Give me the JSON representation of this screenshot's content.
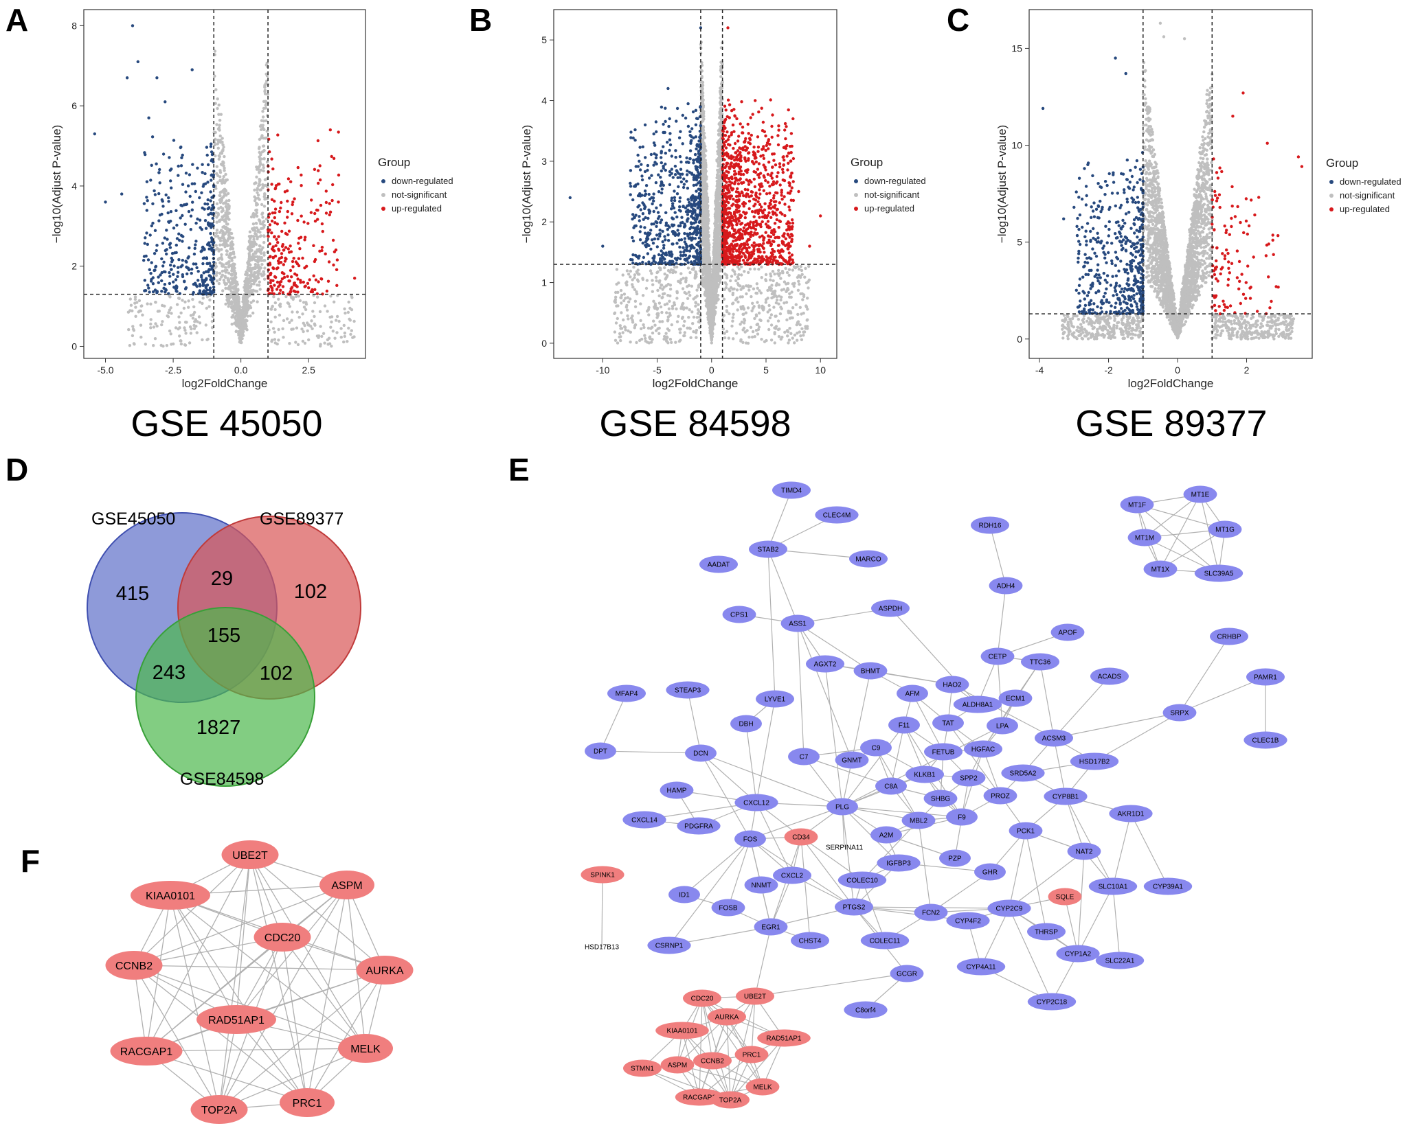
{
  "panels": {
    "A": "A",
    "B": "B",
    "C": "C",
    "D": "D",
    "E": "E",
    "F": "F"
  },
  "colors": {
    "down": "#27497e",
    "ns": "#bfbfbf",
    "up": "#d7191c",
    "venn_blue": "#5e6fc9",
    "venn_red": "#d95555",
    "venn_green": "#4db84d",
    "node_blue": "#8888ee",
    "node_red": "#f07e7e",
    "edge": "#b0b0b0"
  },
  "chart_data": [
    {
      "type": "scatter",
      "id": "A",
      "dataset_title": "GSE 45050",
      "xlabel": "log2FoldChange",
      "ylabel": "−log10(Adjust P-value)",
      "xlim": [
        -5.8,
        4.6
      ],
      "ylim": [
        -0.3,
        8.4
      ],
      "xticks": [
        -5.0,
        -2.5,
        0.0,
        2.5
      ],
      "xtick_labels": [
        "-5.0",
        "-2.5",
        "0.0",
        "2.5"
      ],
      "yticks": [
        0,
        2,
        4,
        6,
        8
      ],
      "fc_cutoff": 1,
      "p_cutoff": 1.3,
      "counts": {
        "ns": 1400,
        "down": 380,
        "up": 240
      },
      "legend_title": "Group",
      "legend": [
        "down-regulated",
        "not-significant",
        "up-regulated"
      ],
      "outliers": [
        [
          -4.0,
          8.0
        ],
        [
          -3.8,
          7.1
        ],
        [
          -4.2,
          6.7
        ],
        [
          -3.1,
          6.7
        ],
        [
          -2.8,
          6.1
        ],
        [
          -1.8,
          6.9
        ],
        [
          -5.4,
          5.3
        ],
        [
          -3.4,
          5.7
        ],
        [
          -4.4,
          3.8
        ],
        [
          -5.0,
          3.6
        ],
        [
          3.3,
          5.4
        ],
        [
          3.6,
          3.6
        ],
        [
          4.2,
          1.7
        ],
        [
          2.8,
          3.4
        ]
      ],
      "up_outliers_note": "scattered red points extend to about 4.2"
    },
    {
      "type": "scatter",
      "id": "B",
      "dataset_title": "GSE 84598",
      "xlabel": "log2FoldChange",
      "ylabel": "−log10(Adjust P-value)",
      "xlim": [
        -14.5,
        11.5
      ],
      "ylim": [
        -0.25,
        5.5
      ],
      "xticks": [
        -10,
        -5,
        0,
        5,
        10
      ],
      "xtick_labels": [
        "-10",
        "-5",
        "0",
        "5",
        "10"
      ],
      "yticks": [
        0,
        1,
        2,
        3,
        4,
        5
      ],
      "fc_cutoff": 1,
      "p_cutoff": 1.3,
      "counts": {
        "ns": 3500,
        "down": 650,
        "up": 1100
      },
      "legend_title": "Group",
      "legend": [
        "down-regulated",
        "not-significant",
        "up-regulated"
      ],
      "outliers": [
        [
          -13.0,
          2.4
        ],
        [
          -10.0,
          1.6
        ],
        [
          -5.5,
          2.4
        ],
        [
          -6.5,
          2.2
        ],
        [
          -1.0,
          5.2
        ],
        [
          1.5,
          5.2
        ],
        [
          10.0,
          2.1
        ],
        [
          8.0,
          2.5
        ],
        [
          6.0,
          2.2
        ],
        [
          9.0,
          1.6
        ],
        [
          4.5,
          2.8
        ],
        [
          7.0,
          1.8
        ],
        [
          -4.0,
          4.2
        ],
        [
          4.0,
          4.0
        ]
      ]
    },
    {
      "type": "scatter",
      "id": "C",
      "dataset_title": "GSE 89377",
      "xlabel": "log2FoldChange",
      "ylabel": "−log10(Adjust P-value)",
      "xlim": [
        -4.3,
        3.9
      ],
      "ylim": [
        -1.0,
        17.0
      ],
      "xticks": [
        -4,
        -2,
        0,
        2
      ],
      "xtick_labels": [
        "-4",
        "-2",
        "0",
        "2"
      ],
      "yticks": [
        0,
        5,
        10,
        15
      ],
      "fc_cutoff": 1,
      "p_cutoff": 1.3,
      "counts": {
        "ns": 3200,
        "down": 520,
        "up": 110
      },
      "legend_title": "Group",
      "legend": [
        "down-regulated",
        "not-significant",
        "up-regulated"
      ],
      "outliers": [
        [
          -0.5,
          16.3
        ],
        [
          -0.4,
          15.6
        ],
        [
          -3.9,
          11.9
        ],
        [
          -1.8,
          14.5
        ],
        [
          -1.5,
          13.7
        ],
        [
          3.5,
          9.4
        ],
        [
          3.6,
          8.9
        ],
        [
          2.6,
          10.1
        ],
        [
          0.2,
          15.5
        ],
        [
          -3.0,
          6.8
        ],
        [
          -3.3,
          6.2
        ],
        [
          1.9,
          12.7
        ],
        [
          1.6,
          11.5
        ],
        [
          -2.6,
          9.0
        ]
      ]
    }
  ],
  "venn": {
    "labels": {
      "set1": "GSE45050",
      "set2": "GSE89377",
      "set3": "GSE84598"
    },
    "counts": {
      "only1": "415",
      "only2": "102",
      "only3": "1827",
      "s12": "29",
      "s13": "243",
      "s23": "102",
      "s123": "155"
    }
  },
  "network_E": {
    "nodes": [
      {
        "id": "TIMD4",
        "c": "b"
      },
      {
        "id": "CLEC4M",
        "c": "b"
      },
      {
        "id": "STAB2",
        "c": "b"
      },
      {
        "id": "MARCO",
        "c": "b"
      },
      {
        "id": "AADAT",
        "c": "b"
      },
      {
        "id": "RDH16",
        "c": "b"
      },
      {
        "id": "ADH4",
        "c": "b"
      },
      {
        "id": "MT1F",
        "c": "b"
      },
      {
        "id": "MT1E",
        "c": "b"
      },
      {
        "id": "MT1G",
        "c": "b"
      },
      {
        "id": "MT1M",
        "c": "b"
      },
      {
        "id": "MT1X",
        "c": "b"
      },
      {
        "id": "SLC39A5",
        "c": "b"
      },
      {
        "id": "CPS1",
        "c": "b"
      },
      {
        "id": "ASS1",
        "c": "b"
      },
      {
        "id": "ASPDH",
        "c": "b"
      },
      {
        "id": "APOF",
        "c": "b"
      },
      {
        "id": "CETP",
        "c": "b"
      },
      {
        "id": "TTC36",
        "c": "b"
      },
      {
        "id": "CRHBP",
        "c": "b"
      },
      {
        "id": "AGXT2",
        "c": "b"
      },
      {
        "id": "BHMT",
        "c": "b"
      },
      {
        "id": "HAO2",
        "c": "b"
      },
      {
        "id": "ACADS",
        "c": "b"
      },
      {
        "id": "PAMR1",
        "c": "b"
      },
      {
        "id": "MFAP4",
        "c": "b"
      },
      {
        "id": "STEAP3",
        "c": "b"
      },
      {
        "id": "LYVE1",
        "c": "b"
      },
      {
        "id": "AFM",
        "c": "b"
      },
      {
        "id": "ALDH8A1",
        "c": "b"
      },
      {
        "id": "ECM1",
        "c": "b"
      },
      {
        "id": "SRPX",
        "c": "b"
      },
      {
        "id": "DBH",
        "c": "b"
      },
      {
        "id": "F11",
        "c": "b"
      },
      {
        "id": "TAT",
        "c": "b"
      },
      {
        "id": "LPA",
        "c": "b"
      },
      {
        "id": "ACSM3",
        "c": "b"
      },
      {
        "id": "CLEC1B",
        "c": "b"
      },
      {
        "id": "DPT",
        "c": "b"
      },
      {
        "id": "DCN",
        "c": "b"
      },
      {
        "id": "C7",
        "c": "b"
      },
      {
        "id": "GNMT",
        "c": "b"
      },
      {
        "id": "C9",
        "c": "b"
      },
      {
        "id": "FETUB",
        "c": "b"
      },
      {
        "id": "HGFAC",
        "c": "b"
      },
      {
        "id": "HSD17B2",
        "c": "b"
      },
      {
        "id": "KLKB1",
        "c": "b"
      },
      {
        "id": "SPP2",
        "c": "b"
      },
      {
        "id": "SRD5A2",
        "c": "b"
      },
      {
        "id": "HAMP",
        "c": "b"
      },
      {
        "id": "C8A",
        "c": "b"
      },
      {
        "id": "SHBG",
        "c": "b"
      },
      {
        "id": "PROZ",
        "c": "b"
      },
      {
        "id": "CYP8B1",
        "c": "b"
      },
      {
        "id": "CXCL12",
        "c": "b"
      },
      {
        "id": "PLG",
        "c": "b"
      },
      {
        "id": "AKR1D1",
        "c": "b"
      },
      {
        "id": "CXCL14",
        "c": "b"
      },
      {
        "id": "PDGFRA",
        "c": "b"
      },
      {
        "id": "MBL2",
        "c": "b"
      },
      {
        "id": "F9",
        "c": "b"
      },
      {
        "id": "FOS",
        "c": "b"
      },
      {
        "id": "CD34",
        "c": "r"
      },
      {
        "id": "SERPINA11",
        "c": "n"
      },
      {
        "id": "A2M",
        "c": "b"
      },
      {
        "id": "PCK1",
        "c": "b"
      },
      {
        "id": "NAT2",
        "c": "b"
      },
      {
        "id": "IGFBP3",
        "c": "b"
      },
      {
        "id": "SPINK1",
        "c": "r"
      },
      {
        "id": "PZP",
        "c": "b"
      },
      {
        "id": "GHR",
        "c": "b"
      },
      {
        "id": "COLEC10",
        "c": "b"
      },
      {
        "id": "CXCL2",
        "c": "b"
      },
      {
        "id": "NNMT",
        "c": "b"
      },
      {
        "id": "ID1",
        "c": "b"
      },
      {
        "id": "SQLE",
        "c": "r"
      },
      {
        "id": "SLC10A1",
        "c": "b"
      },
      {
        "id": "CYP39A1",
        "c": "b"
      },
      {
        "id": "FOSB",
        "c": "b"
      },
      {
        "id": "PTGS2",
        "c": "b"
      },
      {
        "id": "FCN2",
        "c": "b"
      },
      {
        "id": "CYP2C9",
        "c": "b"
      },
      {
        "id": "CYP4F2",
        "c": "b"
      },
      {
        "id": "EGR1",
        "c": "b"
      },
      {
        "id": "THRSP",
        "c": "b"
      },
      {
        "id": "HSD17B13",
        "c": "n"
      },
      {
        "id": "CSRNP1",
        "c": "b"
      },
      {
        "id": "CHST4",
        "c": "b"
      },
      {
        "id": "COLEC11",
        "c": "b"
      },
      {
        "id": "CYP1A2",
        "c": "b"
      },
      {
        "id": "SLC22A1",
        "c": "b"
      },
      {
        "id": "CYP4A11",
        "c": "b"
      },
      {
        "id": "GCGR",
        "c": "b"
      },
      {
        "id": "CDC20",
        "c": "r"
      },
      {
        "id": "UBE2T",
        "c": "r"
      },
      {
        "id": "CYP2C18",
        "c": "b"
      },
      {
        "id": "AURKA",
        "c": "r"
      },
      {
        "id": "C8orf4",
        "c": "b"
      },
      {
        "id": "KIAA0101",
        "c": "r"
      },
      {
        "id": "RAD51AP1",
        "c": "r"
      },
      {
        "id": "PRC1",
        "c": "r"
      },
      {
        "id": "STMN1",
        "c": "r"
      },
      {
        "id": "ASPM",
        "c": "r"
      },
      {
        "id": "CCNB2",
        "c": "r"
      },
      {
        "id": "MELK",
        "c": "r"
      },
      {
        "id": "RACGAP1",
        "c": "r"
      },
      {
        "id": "TOP2A",
        "c": "r"
      }
    ]
  },
  "network_F": {
    "nodes": [
      "UBE2T",
      "ASPM",
      "KIAA0101",
      "CDC20",
      "CCNB2",
      "AURKA",
      "RAD51AP1",
      "RACGAP1",
      "MELK",
      "TOP2A",
      "PRC1"
    ]
  }
}
